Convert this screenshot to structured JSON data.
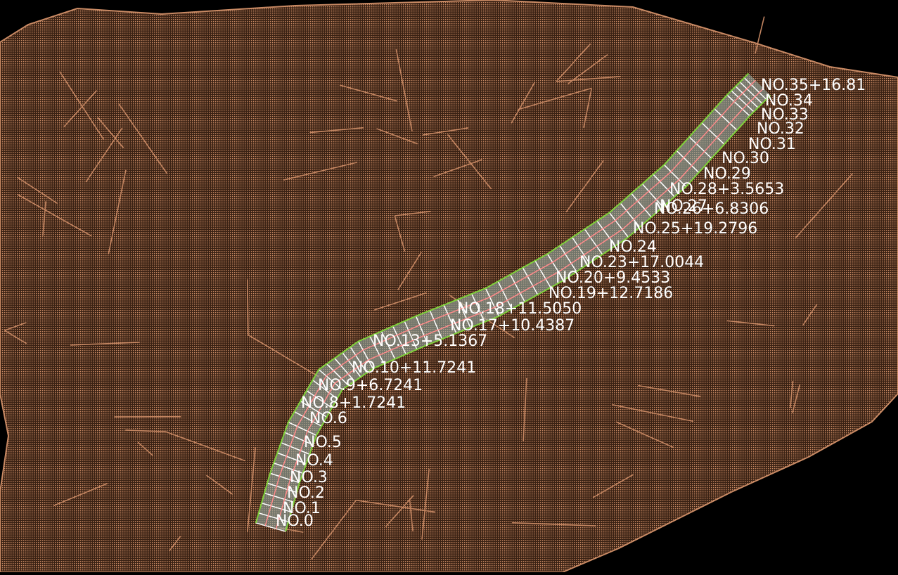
{
  "viewport": {
    "background": "#000000",
    "terrain_color": "#c98a64",
    "terrain_shade": "#3a2214",
    "road_edge_color": "#7fd13a",
    "road_line_color": "#ff8a8a",
    "road_surface_color": "#9fb8b0",
    "label_color": "#ffffff"
  },
  "station_labels": [
    "NO.35+16.81",
    "NO.34",
    "NO.33",
    "NO.32",
    "NO.31",
    "NO.30",
    "NO.29",
    "NO.28+3.5653",
    "NO.27",
    "NO.26+6.8306",
    "NO.25+19.2796",
    "NO.24",
    "NO.23+17.0044",
    "NO.20+9.4533",
    "NO.19+12.7186",
    "NO.18+11.5050",
    "NO.17+10.4387",
    "NO.13+5.1367",
    "NO.10+11.7241",
    "NO.9+6.7241",
    "NO.8+1.7241",
    "NO.6",
    "NO.5",
    "NO.4",
    "NO.3",
    "NO.2",
    "NO.1",
    "NO.0"
  ]
}
